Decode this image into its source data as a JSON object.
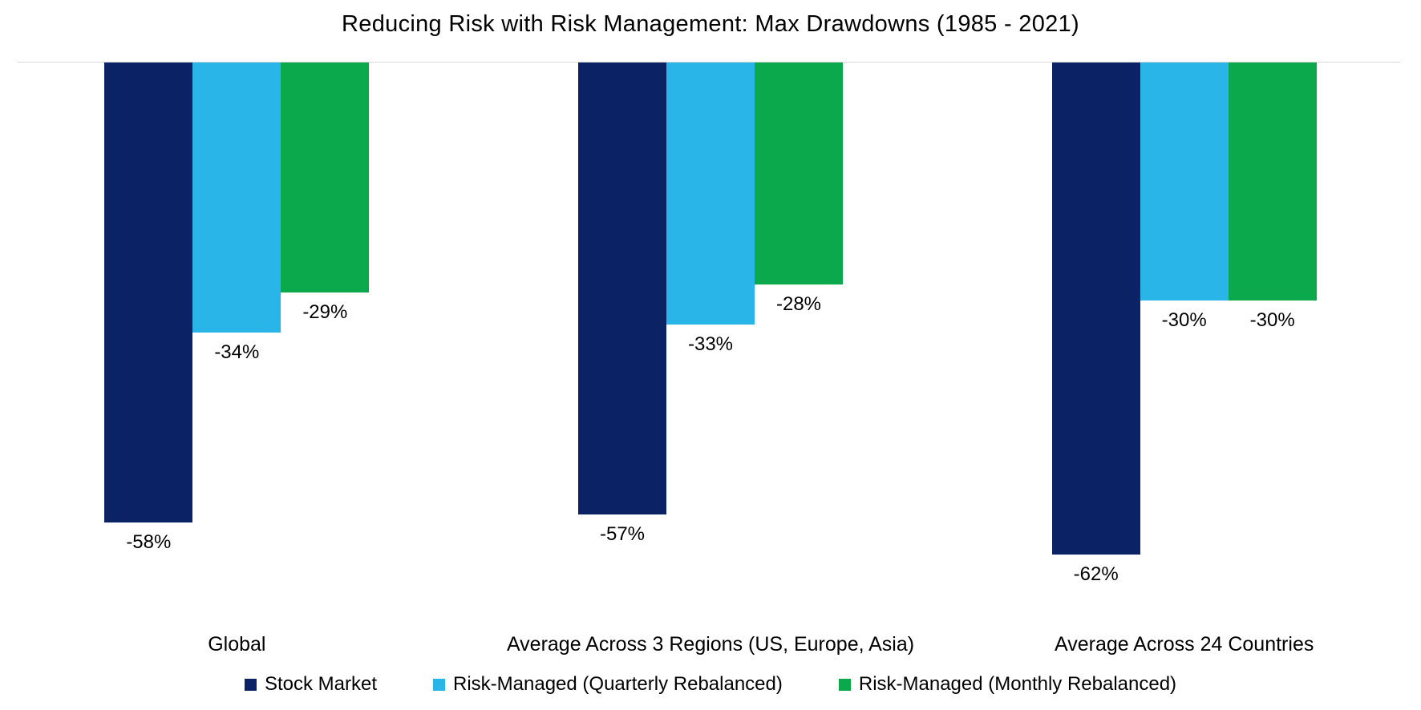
{
  "chart_data": {
    "type": "bar",
    "title": "Reducing Risk with Risk Management: Max Drawdowns (1985 - 2021)",
    "orientation": "vertical-negative",
    "categories": [
      "Global",
      "Average Across 3 Regions (US, Europe, Asia)",
      "Average Across 24 Countries"
    ],
    "series": [
      {
        "name": "Stock Market",
        "color": "#0b2265",
        "values": [
          -58,
          -57,
          -62
        ]
      },
      {
        "name": "Risk-Managed (Quarterly Rebalanced)",
        "color": "#29b5e8",
        "values": [
          -34,
          -33,
          -30
        ]
      },
      {
        "name": "Risk-Managed (Monthly Rebalanced)",
        "color": "#0ba94c",
        "values": [
          -29,
          -28,
          -30
        ]
      }
    ],
    "data_labels": [
      [
        "-58%",
        "-57%",
        "-62%"
      ],
      [
        "-34%",
        "-33%",
        "-30%"
      ],
      [
        "-29%",
        "-28%",
        "-30%"
      ]
    ],
    "value_label_format": "{v}%",
    "ylim": [
      -70,
      0
    ],
    "grid": false,
    "axis_color": "#d9d9d9",
    "background": "#ffffff",
    "legend_position": "bottom"
  }
}
